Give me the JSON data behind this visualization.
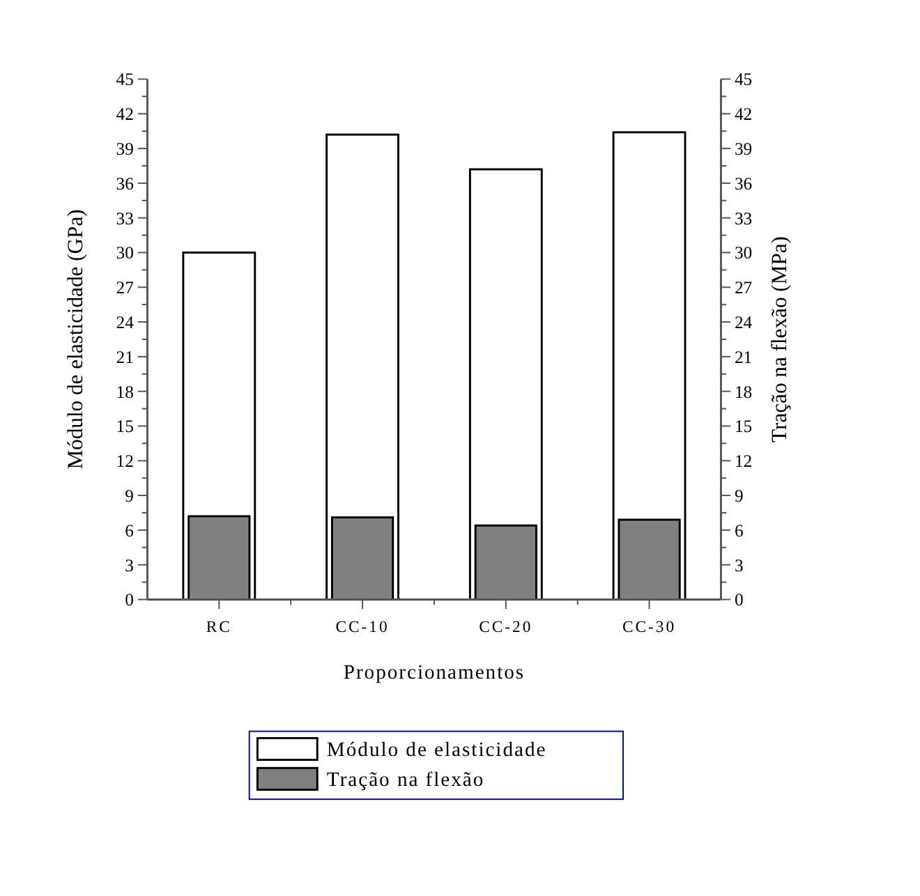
{
  "chart_data": {
    "type": "bar",
    "xlabel": "Proporcionamentos",
    "ylabel": "Módulo de elasticidade (GPa)",
    "y2label": "Tração na flexão (MPa)",
    "categories": [
      "RC",
      "CC-10",
      "CC-20",
      "CC-30"
    ],
    "series": [
      {
        "name": "Módulo de elasticidade",
        "color": "#ffffff",
        "values": [
          30.0,
          40.2,
          37.2,
          40.4
        ]
      },
      {
        "name": "Tração na flexão",
        "color": "#808080",
        "axis": "y2",
        "values": [
          7.2,
          7.1,
          6.4,
          6.9
        ]
      }
    ],
    "ylim": [
      0,
      45
    ],
    "yticks": [
      0,
      3,
      6,
      9,
      12,
      15,
      18,
      21,
      24,
      27,
      30,
      33,
      36,
      39,
      42,
      45
    ],
    "y2lim": [
      0,
      45
    ],
    "y2ticks": [
      0,
      3,
      6,
      9,
      12,
      15,
      18,
      21,
      24,
      27,
      30,
      33,
      36,
      39,
      42,
      45
    ],
    "grid": false,
    "legend": "bottom"
  }
}
